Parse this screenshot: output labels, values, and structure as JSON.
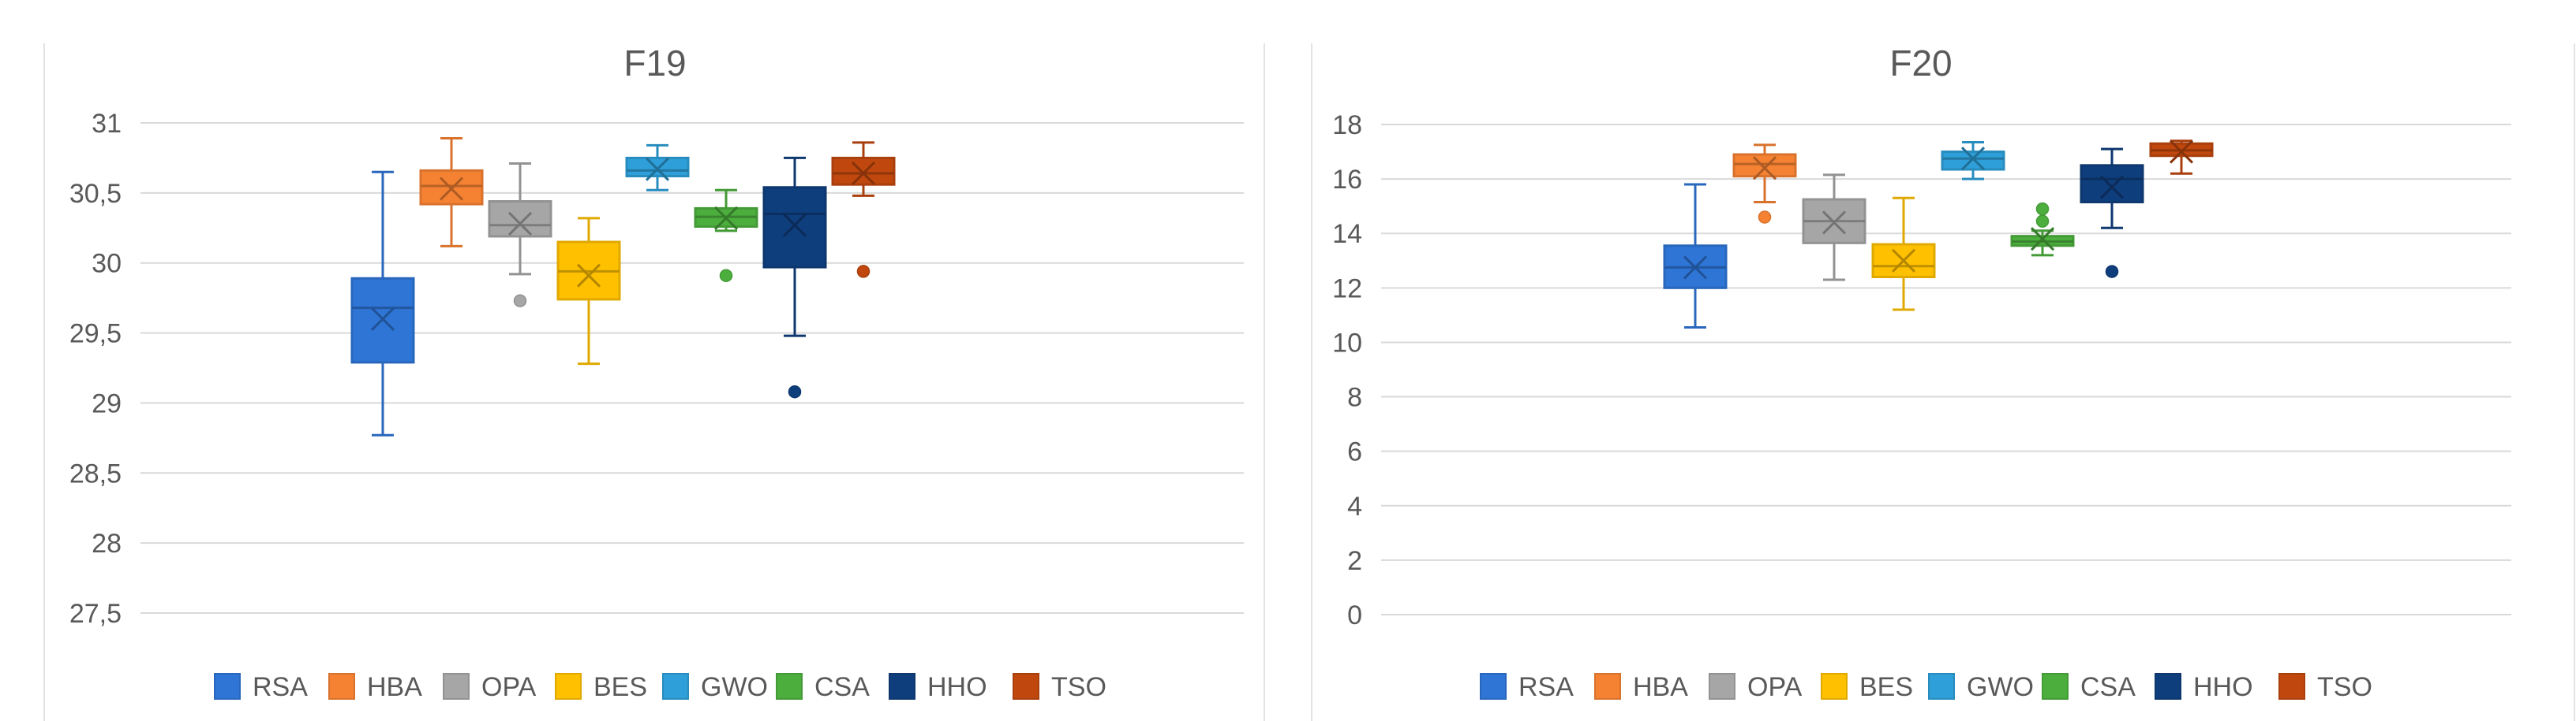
{
  "chart_data": [
    {
      "type": "box",
      "title": "F19",
      "ylim": [
        27.5,
        31
      ],
      "yticks": [
        {
          "value": 27.5,
          "label": "27,5"
        },
        {
          "value": 28,
          "label": "28"
        },
        {
          "value": 28.5,
          "label": "28,5"
        },
        {
          "value": 29,
          "label": "29"
        },
        {
          "value": 29.5,
          "label": "29,5"
        },
        {
          "value": 30,
          "label": "30"
        },
        {
          "value": 30.5,
          "label": "30,5"
        },
        {
          "value": 31,
          "label": "31"
        }
      ],
      "grid": true,
      "legend_position": "bottom",
      "series": [
        {
          "name": "RSA",
          "color": "#2E75D6",
          "min": 28.77,
          "q1": 29.29,
          "median": 29.68,
          "mean": 29.6,
          "q3": 29.89,
          "max": 30.65,
          "outliers": []
        },
        {
          "name": "HBA",
          "color": "#F58233",
          "min": 30.12,
          "q1": 30.42,
          "median": 30.55,
          "mean": 30.53,
          "q3": 30.66,
          "max": 30.89,
          "outliers": []
        },
        {
          "name": "OPA",
          "color": "#A6A6A6",
          "min": 29.92,
          "q1": 30.19,
          "median": 30.27,
          "mean": 30.28,
          "q3": 30.44,
          "max": 30.71,
          "outliers": [
            29.73
          ]
        },
        {
          "name": "BES",
          "color": "#FFC000",
          "min": 29.28,
          "q1": 29.74,
          "median": 29.94,
          "mean": 29.91,
          "q3": 30.15,
          "max": 30.32,
          "outliers": []
        },
        {
          "name": "GWO",
          "color": "#2E9FD8",
          "min": 30.52,
          "q1": 30.62,
          "median": 30.66,
          "mean": 30.67,
          "q3": 30.75,
          "max": 30.84,
          "outliers": []
        },
        {
          "name": "CSA",
          "color": "#4CAF3D",
          "min": 30.23,
          "q1": 30.26,
          "median": 30.33,
          "mean": 30.32,
          "q3": 30.39,
          "max": 30.52,
          "outliers": [
            29.91
          ]
        },
        {
          "name": "HHO",
          "color": "#0F3E7D",
          "min": 29.48,
          "q1": 29.97,
          "median": 30.35,
          "mean": 30.27,
          "q3": 30.54,
          "max": 30.75,
          "outliers": [
            29.08
          ]
        },
        {
          "name": "TSO",
          "color": "#C0480E",
          "min": 30.48,
          "q1": 30.56,
          "median": 30.64,
          "mean": 30.64,
          "q3": 30.75,
          "max": 30.86,
          "outliers": [
            29.94
          ]
        }
      ]
    },
    {
      "type": "box",
      "title": "F20",
      "ylim": [
        0,
        18
      ],
      "yticks": [
        {
          "value": 0,
          "label": "0"
        },
        {
          "value": 2,
          "label": "2"
        },
        {
          "value": 4,
          "label": "4"
        },
        {
          "value": 6,
          "label": "6"
        },
        {
          "value": 8,
          "label": "8"
        },
        {
          "value": 10,
          "label": "10"
        },
        {
          "value": 12,
          "label": "12"
        },
        {
          "value": 14,
          "label": "14"
        },
        {
          "value": 16,
          "label": "16"
        },
        {
          "value": 18,
          "label": "18"
        }
      ],
      "grid": true,
      "legend_position": "bottom",
      "series": [
        {
          "name": "RSA",
          "color": "#2E75D6",
          "min": 10.55,
          "q1": 12.0,
          "median": 12.75,
          "mean": 12.75,
          "q3": 13.55,
          "max": 15.8,
          "outliers": []
        },
        {
          "name": "HBA",
          "color": "#F58233",
          "min": 15.15,
          "q1": 16.1,
          "median": 16.55,
          "mean": 16.4,
          "q3": 16.9,
          "max": 17.25,
          "outliers": [
            14.6
          ]
        },
        {
          "name": "OPA",
          "color": "#A6A6A6",
          "min": 12.3,
          "q1": 13.65,
          "median": 14.45,
          "mean": 14.4,
          "q3": 15.25,
          "max": 16.15,
          "outliers": []
        },
        {
          "name": "BES",
          "color": "#FFC000",
          "min": 11.2,
          "q1": 12.4,
          "median": 12.8,
          "mean": 13.0,
          "q3": 13.6,
          "max": 15.3,
          "outliers": []
        },
        {
          "name": "GWO",
          "color": "#2E9FD8",
          "min": 16.0,
          "q1": 16.35,
          "median": 16.75,
          "mean": 16.75,
          "q3": 17.0,
          "max": 17.35,
          "outliers": []
        },
        {
          "name": "CSA",
          "color": "#4CAF3D",
          "min": 13.2,
          "q1": 13.55,
          "median": 13.7,
          "mean": 13.8,
          "q3": 13.9,
          "max": 14.1,
          "outliers": [
            14.45,
            14.9
          ]
        },
        {
          "name": "HHO",
          "color": "#0F3E7D",
          "min": 14.2,
          "q1": 15.15,
          "median": 16.0,
          "mean": 15.7,
          "q3": 16.5,
          "max": 17.1,
          "outliers": [
            12.6
          ]
        },
        {
          "name": "TSO",
          "color": "#C0480E",
          "min": 16.2,
          "q1": 16.85,
          "median": 17.05,
          "mean": 17.0,
          "q3": 17.3,
          "max": 17.4,
          "outliers": []
        }
      ]
    }
  ]
}
